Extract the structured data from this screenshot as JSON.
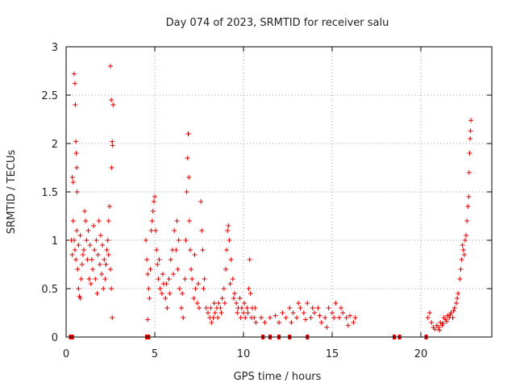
{
  "chart_data": {
    "type": "scatter",
    "title": "Day 074 of 2023, SRMTID for receiver salu",
    "xlabel": "GPS time / hours",
    "ylabel": "SRMTID / TECUs",
    "xlim": [
      0,
      24
    ],
    "ylim": [
      0,
      3
    ],
    "xticks": [
      0,
      5,
      10,
      15,
      20
    ],
    "xtick_labels": [
      "0",
      "5",
      "10",
      "15",
      "20"
    ],
    "yticks": [
      0,
      0.5,
      1,
      1.5,
      2,
      2.5,
      3
    ],
    "ytick_labels": [
      "0",
      "0.5",
      "1",
      "1.5",
      "2",
      "2.5",
      "3"
    ],
    "grid": true,
    "marker": "+",
    "color": "#e00000",
    "series": [
      {
        "name": "SRMTID",
        "points": [
          [
            0.35,
            1.65
          ],
          [
            0.4,
            1.6
          ],
          [
            0.45,
            2.72
          ],
          [
            0.5,
            2.62
          ],
          [
            0.52,
            2.4
          ],
          [
            0.55,
            2.02
          ],
          [
            0.57,
            1.9
          ],
          [
            0.6,
            1.75
          ],
          [
            0.62,
            1.5
          ],
          [
            0.4,
            1.2
          ],
          [
            0.45,
            1.0
          ],
          [
            0.5,
            0.9
          ],
          [
            0.55,
            0.8
          ],
          [
            0.6,
            1.1
          ],
          [
            0.65,
            0.7
          ],
          [
            0.7,
            0.5
          ],
          [
            0.75,
            0.42
          ],
          [
            0.8,
            0.4
          ],
          [
            0.85,
            0.6
          ],
          [
            0.9,
            0.75
          ],
          [
            0.95,
            0.85
          ],
          [
            1.0,
            0.9
          ],
          [
            1.05,
            1.3
          ],
          [
            1.1,
            1.2
          ],
          [
            1.15,
            1.0
          ],
          [
            1.2,
            0.8
          ],
          [
            1.3,
            0.6
          ],
          [
            1.4,
            0.55
          ],
          [
            1.5,
            0.7
          ],
          [
            1.6,
            0.9
          ],
          [
            1.7,
            1.0
          ],
          [
            1.8,
            0.85
          ],
          [
            1.9,
            0.75
          ],
          [
            2.0,
            0.65
          ],
          [
            2.1,
            0.5
          ],
          [
            2.2,
            0.6
          ],
          [
            2.3,
            0.9
          ],
          [
            2.4,
            1.2
          ],
          [
            2.45,
            1.35
          ],
          [
            2.5,
            2.8
          ],
          [
            2.55,
            2.45
          ],
          [
            2.6,
            2.02
          ],
          [
            2.62,
            1.98
          ],
          [
            2.57,
            1.75
          ],
          [
            2.65,
            2.4
          ],
          [
            2.6,
            0.2
          ],
          [
            2.55,
            0.5
          ],
          [
            2.5,
            0.7
          ],
          [
            0.3,
            1.0
          ],
          [
            0.35,
            0.85
          ],
          [
            0.7,
            0.95
          ],
          [
            0.8,
            1.05
          ],
          [
            1.25,
            1.1
          ],
          [
            1.35,
            0.95
          ],
          [
            1.45,
            0.8
          ],
          [
            1.55,
            1.15
          ],
          [
            1.65,
            0.6
          ],
          [
            1.75,
            0.45
          ],
          [
            1.85,
            1.2
          ],
          [
            1.95,
            1.05
          ],
          [
            2.05,
            0.95
          ],
          [
            2.15,
            0.8
          ],
          [
            2.25,
            0.75
          ],
          [
            2.35,
            1.0
          ],
          [
            2.4,
            0.85
          ],
          [
            4.5,
            1.0
          ],
          [
            4.55,
            0.8
          ],
          [
            4.6,
            0.65
          ],
          [
            4.65,
            0.5
          ],
          [
            4.7,
            0.4
          ],
          [
            4.75,
            0.7
          ],
          [
            4.8,
            1.1
          ],
          [
            4.85,
            1.2
          ],
          [
            4.9,
            1.3
          ],
          [
            4.95,
            1.4
          ],
          [
            5.0,
            1.45
          ],
          [
            5.05,
            1.1
          ],
          [
            5.1,
            0.9
          ],
          [
            5.15,
            0.75
          ],
          [
            5.2,
            0.6
          ],
          [
            5.3,
            0.5
          ],
          [
            5.4,
            0.45
          ],
          [
            5.5,
            0.55
          ],
          [
            5.6,
            0.4
          ],
          [
            5.7,
            0.3
          ],
          [
            5.8,
            0.6
          ],
          [
            5.9,
            0.8
          ],
          [
            6.0,
            0.9
          ],
          [
            6.1,
            1.1
          ],
          [
            6.2,
            0.9
          ],
          [
            6.3,
            0.7
          ],
          [
            6.4,
            0.5
          ],
          [
            6.5,
            0.3
          ],
          [
            6.6,
            0.2
          ],
          [
            6.7,
            0.6
          ],
          [
            6.75,
            1.0
          ],
          [
            6.8,
            1.5
          ],
          [
            6.85,
            1.85
          ],
          [
            6.88,
            2.1
          ],
          [
            6.9,
            2.1
          ],
          [
            6.92,
            1.65
          ],
          [
            6.95,
            1.2
          ],
          [
            7.0,
            0.9
          ],
          [
            7.1,
            0.6
          ],
          [
            7.2,
            0.4
          ],
          [
            7.3,
            0.5
          ],
          [
            7.4,
            0.35
          ],
          [
            7.5,
            0.3
          ],
          [
            7.6,
            1.4
          ],
          [
            7.65,
            1.1
          ],
          [
            7.7,
            0.9
          ],
          [
            7.8,
            0.6
          ],
          [
            7.9,
            0.3
          ],
          [
            8.0,
            0.25
          ],
          [
            8.1,
            0.2
          ],
          [
            8.2,
            0.15
          ],
          [
            8.3,
            0.2
          ],
          [
            8.4,
            0.25
          ],
          [
            8.5,
            0.3
          ],
          [
            8.6,
            0.35
          ],
          [
            8.7,
            0.3
          ],
          [
            8.8,
            0.4
          ],
          [
            8.9,
            0.5
          ],
          [
            9.0,
            0.7
          ],
          [
            9.05,
            0.9
          ],
          [
            9.1,
            1.1
          ],
          [
            9.15,
            1.15
          ],
          [
            9.2,
            1.0
          ],
          [
            9.3,
            0.8
          ],
          [
            9.4,
            0.6
          ],
          [
            9.5,
            0.45
          ],
          [
            9.6,
            0.35
          ],
          [
            9.7,
            0.3
          ],
          [
            9.8,
            0.4
          ],
          [
            9.9,
            0.3
          ],
          [
            10.0,
            0.25
          ],
          [
            10.1,
            0.2
          ],
          [
            10.2,
            0.3
          ],
          [
            10.3,
            0.5
          ],
          [
            10.35,
            0.8
          ],
          [
            10.4,
            0.45
          ],
          [
            10.5,
            0.3
          ],
          [
            10.6,
            0.2
          ],
          [
            10.7,
            0.15
          ],
          [
            4.6,
            0.18
          ],
          [
            5.25,
            0.8
          ],
          [
            5.45,
            0.65
          ],
          [
            5.65,
            0.55
          ],
          [
            5.85,
            0.45
          ],
          [
            6.05,
            0.65
          ],
          [
            6.25,
            1.2
          ],
          [
            6.35,
            1.0
          ],
          [
            6.55,
            0.45
          ],
          [
            7.05,
            0.7
          ],
          [
            7.25,
            0.85
          ],
          [
            7.45,
            0.55
          ],
          [
            7.75,
            0.5
          ],
          [
            8.15,
            0.3
          ],
          [
            8.35,
            0.35
          ],
          [
            8.55,
            0.2
          ],
          [
            8.75,
            0.25
          ],
          [
            8.95,
            0.35
          ],
          [
            9.25,
            0.55
          ],
          [
            9.45,
            0.4
          ],
          [
            9.65,
            0.25
          ],
          [
            9.85,
            0.2
          ],
          [
            10.05,
            0.35
          ],
          [
            10.25,
            0.25
          ],
          [
            10.45,
            0.2
          ],
          [
            10.65,
            0.3
          ],
          [
            11.0,
            0.2
          ],
          [
            11.2,
            0.15
          ],
          [
            11.5,
            0.2
          ],
          [
            11.8,
            0.22
          ],
          [
            12.0,
            0.15
          ],
          [
            12.2,
            0.25
          ],
          [
            12.4,
            0.2
          ],
          [
            12.6,
            0.3
          ],
          [
            12.8,
            0.25
          ],
          [
            13.0,
            0.2
          ],
          [
            13.2,
            0.3
          ],
          [
            13.4,
            0.25
          ],
          [
            13.6,
            0.35
          ],
          [
            13.8,
            0.2
          ],
          [
            14.0,
            0.25
          ],
          [
            14.2,
            0.3
          ],
          [
            14.4,
            0.15
          ],
          [
            14.6,
            0.2
          ],
          [
            14.8,
            0.3
          ],
          [
            15.0,
            0.25
          ],
          [
            15.2,
            0.35
          ],
          [
            15.4,
            0.2
          ],
          [
            15.6,
            0.25
          ],
          [
            15.8,
            0.2
          ],
          [
            16.0,
            0.22
          ],
          [
            16.2,
            0.15
          ],
          [
            16.3,
            0.2
          ],
          [
            12.7,
            0.15
          ],
          [
            13.1,
            0.35
          ],
          [
            13.5,
            0.18
          ],
          [
            13.9,
            0.3
          ],
          [
            14.3,
            0.22
          ],
          [
            14.7,
            0.1
          ],
          [
            15.1,
            0.2
          ],
          [
            15.5,
            0.3
          ],
          [
            15.9,
            0.12
          ],
          [
            20.4,
            0.2
          ],
          [
            20.5,
            0.25
          ],
          [
            20.6,
            0.15
          ],
          [
            20.7,
            0.1
          ],
          [
            20.8,
            0.08
          ],
          [
            20.9,
            0.12
          ],
          [
            21.0,
            0.1
          ],
          [
            21.1,
            0.15
          ],
          [
            21.2,
            0.12
          ],
          [
            21.3,
            0.2
          ],
          [
            21.4,
            0.18
          ],
          [
            21.5,
            0.22
          ],
          [
            21.6,
            0.2
          ],
          [
            21.7,
            0.25
          ],
          [
            21.8,
            0.2
          ],
          [
            21.9,
            0.3
          ],
          [
            22.0,
            0.35
          ],
          [
            22.1,
            0.45
          ],
          [
            22.2,
            0.6
          ],
          [
            22.3,
            0.8
          ],
          [
            22.4,
            0.9
          ],
          [
            22.5,
            1.0
          ],
          [
            22.55,
            1.05
          ],
          [
            22.6,
            1.2
          ],
          [
            22.65,
            1.35
          ],
          [
            22.7,
            1.45
          ],
          [
            22.72,
            1.7
          ],
          [
            22.75,
            1.9
          ],
          [
            22.78,
            2.05
          ],
          [
            22.8,
            2.13
          ],
          [
            22.82,
            2.24
          ],
          [
            21.05,
            0.07
          ],
          [
            21.25,
            0.14
          ],
          [
            21.45,
            0.16
          ],
          [
            21.65,
            0.23
          ],
          [
            21.85,
            0.27
          ],
          [
            22.05,
            0.4
          ],
          [
            22.25,
            0.7
          ],
          [
            22.35,
            0.95
          ],
          [
            22.45,
            0.85
          ]
        ]
      }
    ],
    "zero_markers_x": [
      0.25,
      0.35,
      4.55,
      4.65,
      11.1,
      11.5,
      12.0,
      12.6,
      13.6,
      18.5,
      18.8,
      20.3
    ]
  }
}
